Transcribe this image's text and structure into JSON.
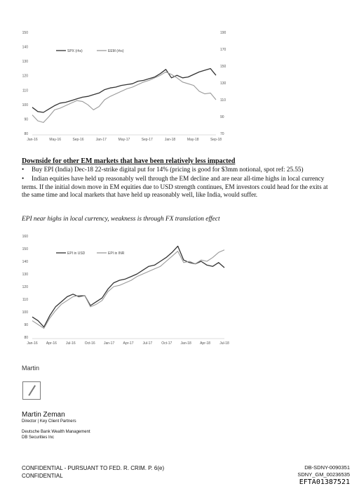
{
  "chart_data": [
    {
      "type": "line",
      "x_ticks": [
        "Jan-16",
        "May-16",
        "Sep-16",
        "Jan-17",
        "May-17",
        "Sep-17",
        "Jan-18",
        "May-18",
        "Sep-18"
      ],
      "left_axis": {
        "ylim": [
          80,
          150
        ],
        "ticks": [
          "150",
          "140",
          "130",
          "120",
          "110",
          "100",
          "90",
          "80"
        ]
      },
      "right_axis": {
        "ylim": [
          70,
          190
        ],
        "ticks": [
          "190",
          "170",
          "150",
          "130",
          "110",
          "90",
          "70"
        ]
      },
      "legend": [
        "SPX (rhs)",
        "EEM (rhs)"
      ],
      "legend_position": "top-left",
      "series": [
        {
          "name": "SPX (rhs)",
          "color": "#333333",
          "axis": "right",
          "values": [
            101,
            96,
            95,
            99,
            103,
            106,
            107,
            109,
            111,
            113,
            114,
            116,
            118,
            122,
            124,
            125,
            127,
            128,
            129,
            132,
            133,
            135,
            137,
            141,
            146,
            136,
            139,
            136,
            137,
            140,
            143,
            145,
            147,
            139
          ]
        },
        {
          "name": "EEM (rhs)",
          "color": "#9a9a9a",
          "axis": "right",
          "values": [
            92,
            85,
            83,
            90,
            98,
            100,
            103,
            106,
            109,
            108,
            104,
            98,
            102,
            110,
            114,
            117,
            120,
            123,
            125,
            128,
            131,
            133,
            136,
            139,
            143,
            140,
            136,
            131,
            129,
            127,
            120,
            117,
            118,
            110
          ]
        }
      ]
    },
    {
      "type": "line",
      "x_ticks": [
        "Jan-16",
        "Apr-16",
        "Jul-16",
        "Oct-16",
        "Jan-17",
        "Apr-17",
        "Jul-17",
        "Oct-17",
        "Jan-18",
        "Apr-18",
        "Jul-18"
      ],
      "ylim": [
        80,
        160
      ],
      "y_ticks": [
        "160",
        "150",
        "140",
        "130",
        "120",
        "110",
        "100",
        "90",
        "80"
      ],
      "legend": [
        "EPI in USD",
        "EPI in INR"
      ],
      "legend_position": "top-left",
      "series": [
        {
          "name": "EPI in USD",
          "color": "#333333",
          "values": [
            96,
            93,
            88,
            97,
            104,
            108,
            112,
            114,
            112,
            113,
            105,
            108,
            111,
            118,
            123,
            125,
            126,
            128,
            130,
            133,
            136,
            137,
            140,
            143,
            147,
            152,
            141,
            139,
            138,
            140,
            137,
            136,
            139,
            135
          ]
        },
        {
          "name": "EPI in INR",
          "color": "#9a9a9a",
          "values": [
            93,
            90,
            87,
            95,
            101,
            106,
            109,
            112,
            113,
            113,
            104,
            106,
            109,
            116,
            120,
            121,
            123,
            125,
            128,
            130,
            132,
            134,
            136,
            140,
            144,
            148,
            139,
            140,
            138,
            141,
            140,
            143,
            147,
            149
          ]
        }
      ]
    }
  ],
  "section": {
    "title": "Downside for other EM markets that have been relatively less impacted",
    "bullet_1": "Buy EPI (India) Dec-18 22-strike digital put for 14% (pricing is good for $3mm notional, spot ref: 25.55)",
    "bullet_2": "Indian equities have held up reasonably well through the EM decline and are near all-time highs in local currency terms.  If the initial down move in EM equities due to USD strength continues, EM investors could head for the exits at the same time and local markets that have held up reasonably well, like India, would suffer.",
    "bullet_symbol": "•"
  },
  "chart2_caption": "EPI near highs in local currency, weakness is through FX translation effect",
  "signature": {
    "signoff": "Martin",
    "name": "Martin Zeman",
    "title": "Director | Key Client Partners",
    "org_line_1": "Deutsche Bank Wealth Management",
    "org_line_2": "DB Securities Inc"
  },
  "footer": {
    "left_1": "CONFIDENTIAL - PURSUANT TO FED. R. CRIM. P. 6(e)",
    "left_2": "CONFIDENTIAL",
    "right_1": "DB-SDNY-0090351",
    "right_2": "SDNY_GM_00236535",
    "right_3": "EFTA01387521"
  }
}
